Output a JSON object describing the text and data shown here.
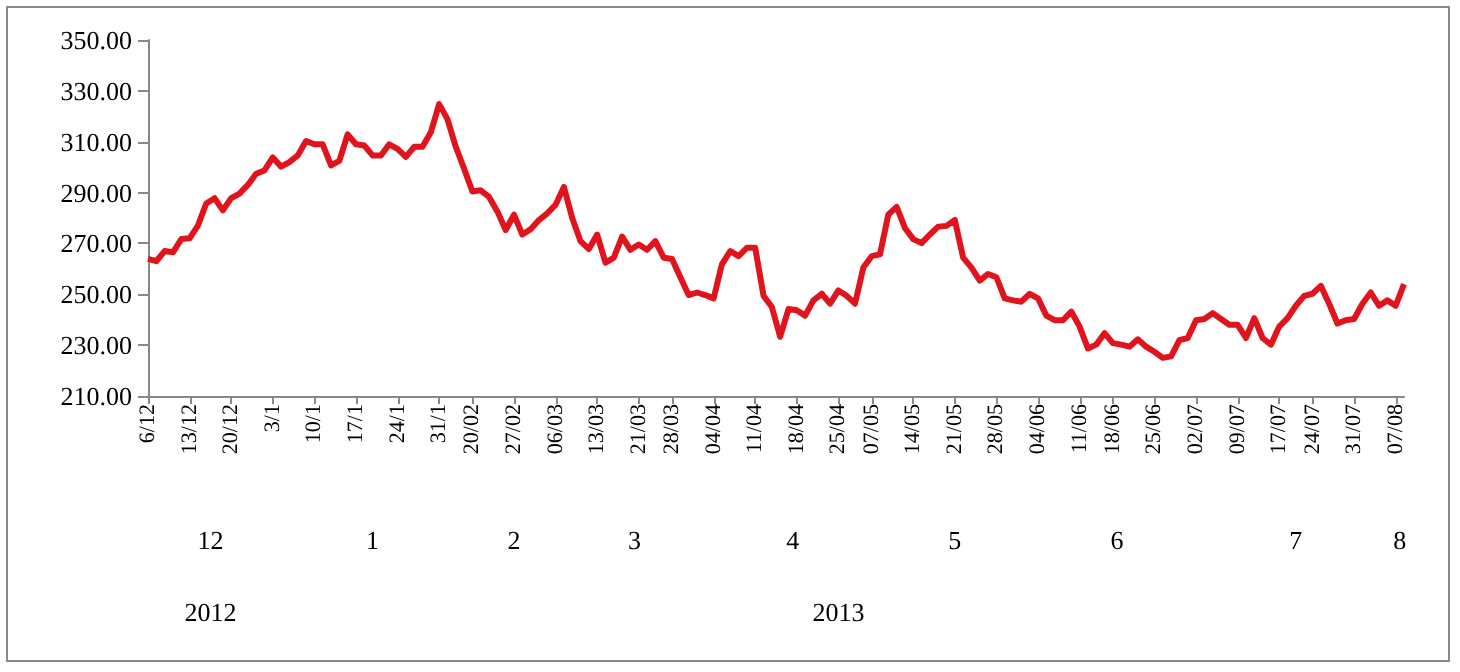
{
  "chart_data": {
    "type": "line",
    "categories": [
      "6/12",
      null,
      null,
      null,
      null,
      "13/12",
      null,
      null,
      null,
      null,
      "20/12",
      null,
      null,
      null,
      null,
      "3/1",
      null,
      null,
      null,
      null,
      "10/1",
      null,
      null,
      null,
      null,
      "17/1",
      null,
      null,
      null,
      null,
      "24/1",
      null,
      null,
      null,
      null,
      "31/1",
      null,
      null,
      null,
      "20/02",
      null,
      null,
      null,
      null,
      "27/02",
      null,
      null,
      null,
      null,
      "06/03",
      null,
      null,
      null,
      null,
      "13/03",
      null,
      null,
      null,
      null,
      "21/03",
      null,
      null,
      null,
      "28/03",
      null,
      null,
      null,
      null,
      "04/04",
      null,
      null,
      null,
      null,
      "11/04",
      null,
      null,
      null,
      null,
      "18/04",
      null,
      null,
      null,
      null,
      "25/04",
      null,
      null,
      null,
      "07/05",
      null,
      null,
      null,
      null,
      "14/05",
      null,
      null,
      null,
      null,
      "21/05",
      null,
      null,
      null,
      null,
      "28/05",
      null,
      null,
      null,
      null,
      "04/06",
      null,
      null,
      null,
      null,
      "11/06",
      null,
      null,
      null,
      "18/06",
      null,
      null,
      null,
      null,
      "25/06",
      null,
      null,
      null,
      null,
      "02/07",
      null,
      null,
      null,
      null,
      "09/07",
      null,
      null,
      null,
      null,
      "17/07",
      null,
      null,
      null,
      "24/07",
      null,
      null,
      null,
      null,
      "31/07",
      null,
      null,
      null,
      null,
      "07/08",
      null
    ],
    "series": [
      {
        "color": "#e0141c",
        "values": [
          263.9,
          263,
          267,
          266.5,
          271.7,
          272,
          277,
          285.7,
          287.8,
          283,
          287.8,
          289.6,
          293,
          297.4,
          298.7,
          303.8,
          300.2,
          302,
          304.6,
          310.3,
          309,
          309,
          300.7,
          302.5,
          312.9,
          309,
          308.5,
          304.6,
          304.6,
          309,
          307.2,
          304,
          308,
          308,
          313.7,
          324.8,
          318.9,
          308,
          299.4,
          290.4,
          290.9,
          288.3,
          282.6,
          275.3,
          281.3,
          273.5,
          275.6,
          279.2,
          281.8,
          285.2,
          292.2,
          280,
          270.9,
          267.8,
          273.5,
          262.4,
          264.4,
          272.7,
          267.5,
          269.6,
          267.5,
          270.9,
          264.4,
          263.9,
          256.7,
          249.7,
          250.7,
          249.7,
          248.4,
          261.8,
          267,
          265,
          268.3,
          268.3,
          249.4,
          245,
          233.3,
          244.2,
          243.7,
          241.6,
          247.6,
          250.2,
          246.3,
          251.5,
          249.4,
          246.3,
          260.5,
          265,
          265.7,
          281.3,
          284.4,
          276.1,
          271.7,
          270.1,
          273.5,
          276.6,
          276.9,
          279.2,
          264.4,
          260.5,
          255.4,
          258,
          256.7,
          248.4,
          247.6,
          247.1,
          250.2,
          248.4,
          241.6,
          239.8,
          239.8,
          243.2,
          237.3,
          228.7,
          230.2,
          234.7,
          230.8,
          230.2,
          229.4,
          232.3,
          229.4,
          227.4,
          225,
          225.6,
          232,
          232.8,
          239.8,
          240.3,
          242.6,
          240.3,
          238,
          238,
          232.8,
          240.6,
          232.8,
          230.2,
          237.3,
          240.6,
          245.5,
          249.4,
          250.2,
          253.3,
          246.3,
          238.5,
          239.8,
          240.3,
          246.3,
          250.7,
          245.5,
          247.6,
          245.5,
          254
        ]
      }
    ],
    "ylim": [
      210,
      350
    ],
    "yticks": [
      {
        "value": 210,
        "label": "210.00"
      },
      {
        "value": 230,
        "label": "230.00"
      },
      {
        "value": 250,
        "label": "250.00"
      },
      {
        "value": 270,
        "label": "270.00"
      },
      {
        "value": 290,
        "label": "290.00"
      },
      {
        "value": 310,
        "label": "310.00"
      },
      {
        "value": 330,
        "label": "330.00"
      },
      {
        "value": 350,
        "label": "350.00"
      }
    ],
    "annotations": [
      "12",
      "1",
      "2",
      "3",
      "4",
      "5",
      "6",
      "7",
      "8",
      "2012",
      "2013"
    ],
    "grid": false,
    "marker": "none",
    "line_style": "solid"
  }
}
